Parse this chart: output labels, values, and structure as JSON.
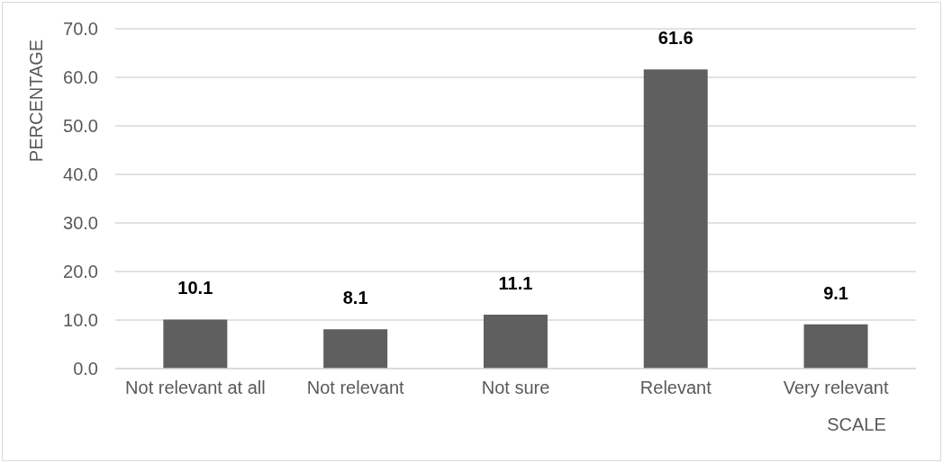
{
  "chart_data": {
    "type": "bar",
    "categories": [
      "Not relevant at all",
      "Not relevant",
      "Not sure",
      "Relevant",
      "Very relevant"
    ],
    "values": [
      10.1,
      8.1,
      11.1,
      61.6,
      9.1
    ],
    "color": "#5f5f5f",
    "xlabel": "SCALE",
    "ylabel": "PERCENTAGE",
    "ylim": [
      0,
      70
    ],
    "yticks": [
      {
        "value": 0,
        "label": "0.0"
      },
      {
        "value": 10,
        "label": "10.0"
      },
      {
        "value": 20,
        "label": "20.0"
      },
      {
        "value": 30,
        "label": "30.0"
      },
      {
        "value": 40,
        "label": "40.0"
      },
      {
        "value": 50,
        "label": "50.0"
      },
      {
        "value": 60,
        "label": "60.0"
      },
      {
        "value": 70,
        "label": "70.0"
      }
    ],
    "grid": "y",
    "data_labels": true
  }
}
